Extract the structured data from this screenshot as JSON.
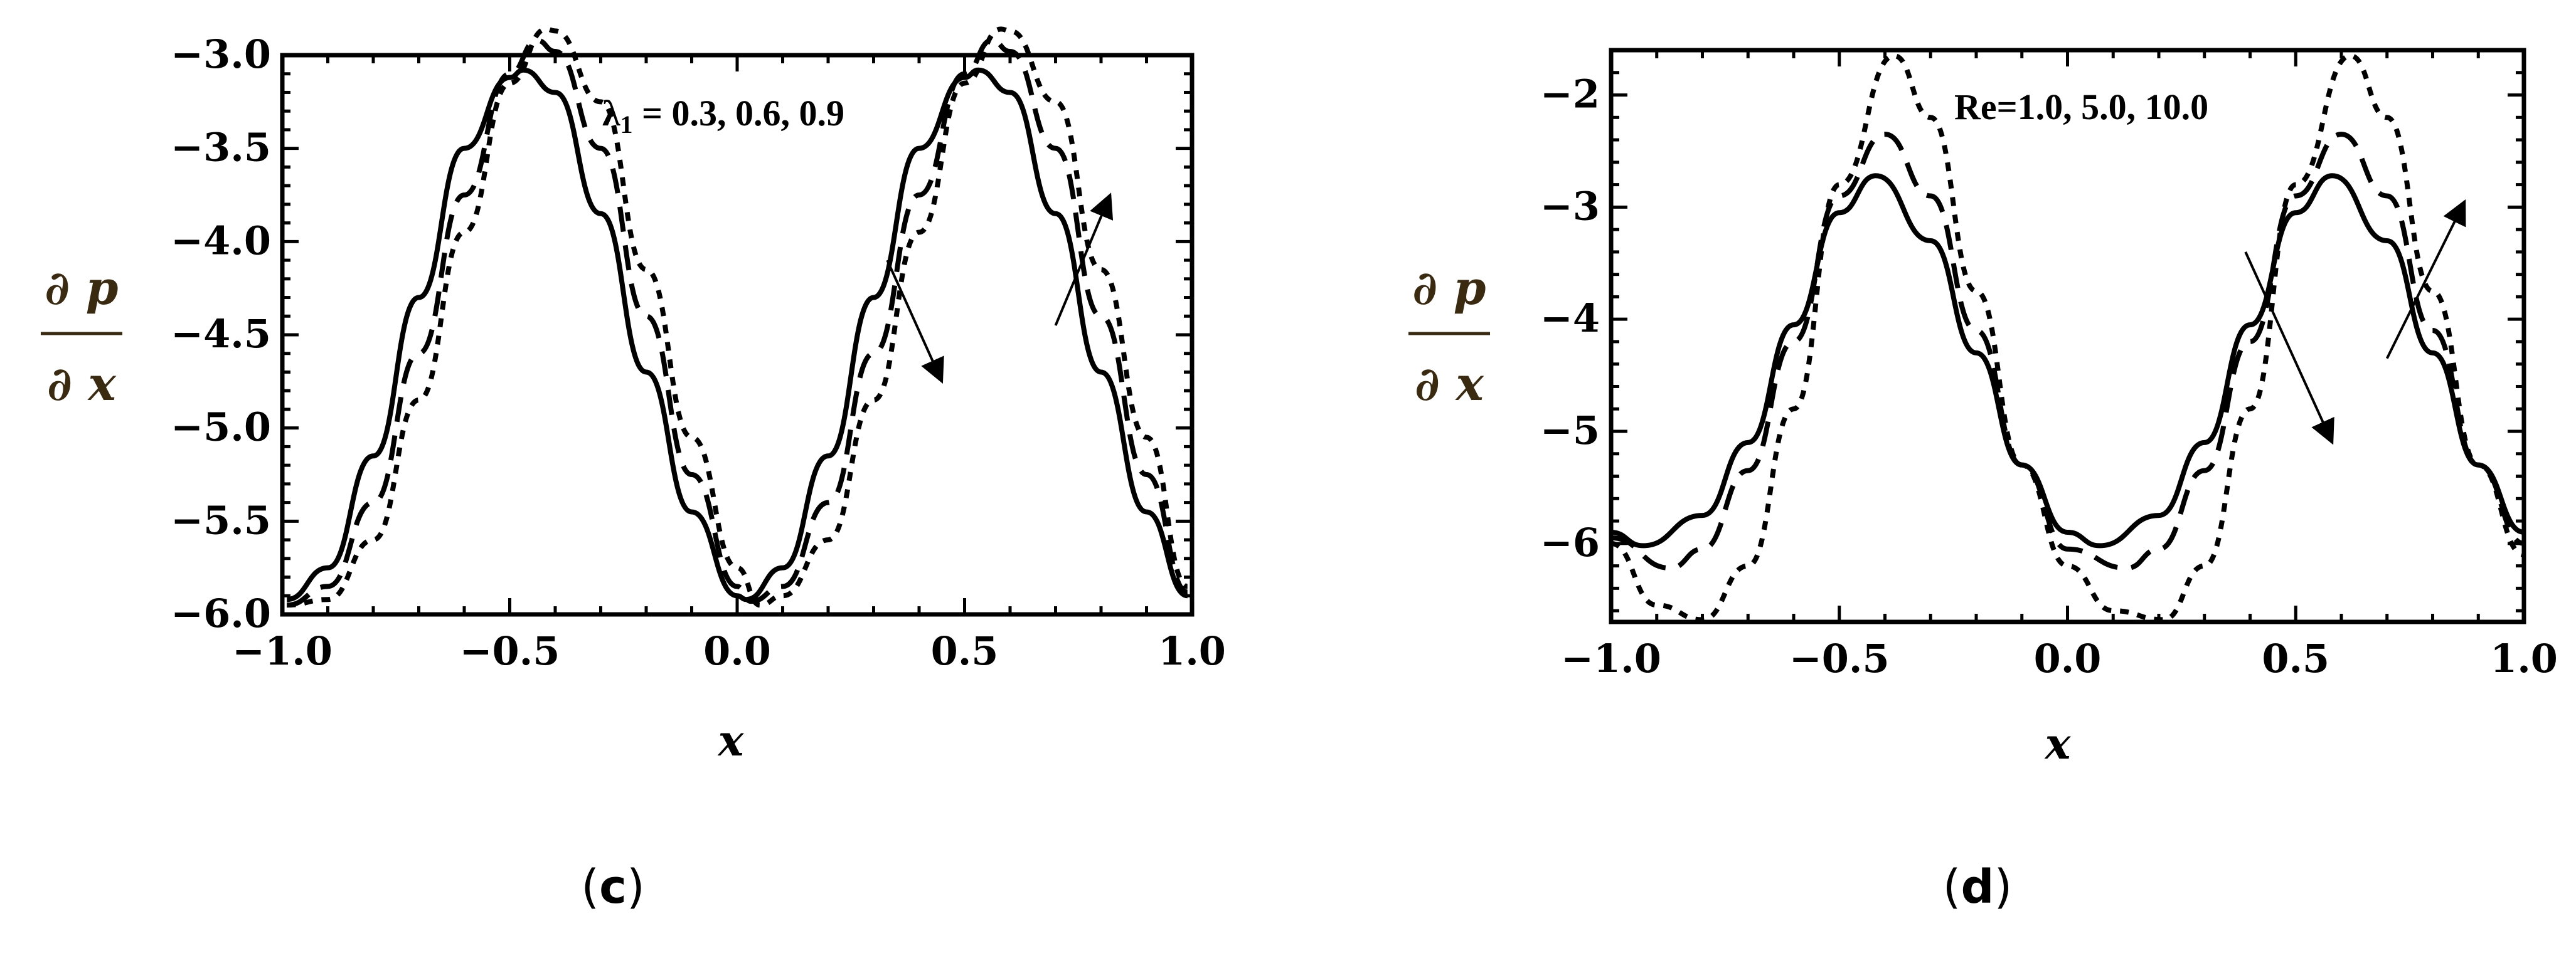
{
  "chart_data": [
    {
      "panel": "c",
      "type": "line",
      "xlabel": "x",
      "ylabel_numerator": "∂ p",
      "ylabel_denominator": "∂ x",
      "xlim": [
        -1.0,
        1.0
      ],
      "ylim": [
        -6.0,
        -3.0
      ],
      "x_ticks": [
        -1.0,
        -0.5,
        0.0,
        0.5,
        1.0
      ],
      "x_tick_labels": [
        "−1.0",
        "−0.5",
        "0.0",
        "0.5",
        "1.0"
      ],
      "y_ticks": [
        -3.0,
        -3.5,
        -4.0,
        -4.5,
        -5.0,
        -5.5,
        -6.0
      ],
      "y_tick_labels": [
        "−3.0",
        "−3.5",
        "−4.0",
        "−4.5",
        "−5.0",
        "−5.5",
        "−6.0"
      ],
      "annotation_main": "λ",
      "annotation_sub": "1",
      "annotation_rest": " = 0.3, 0.6, 0.9",
      "series": [
        {
          "style": "solid",
          "x": [
            -0.99,
            -0.9,
            -0.8,
            -0.7,
            -0.6,
            -0.5,
            -0.47,
            -0.4,
            -0.3,
            -0.2,
            -0.1,
            0.0,
            0.02,
            0.1,
            0.2,
            0.3,
            0.4,
            0.5,
            0.53,
            0.6,
            0.7,
            0.8,
            0.9,
            0.99
          ],
          "y": [
            -5.92,
            -5.75,
            -5.15,
            -4.3,
            -3.5,
            -3.12,
            -3.08,
            -3.2,
            -3.85,
            -4.7,
            -5.45,
            -5.9,
            -5.92,
            -5.75,
            -5.15,
            -4.3,
            -3.5,
            -3.12,
            -3.08,
            -3.2,
            -3.85,
            -4.7,
            -5.45,
            -5.9
          ]
        },
        {
          "style": "dashed",
          "x": [
            -0.99,
            -0.9,
            -0.8,
            -0.7,
            -0.6,
            -0.5,
            -0.44,
            -0.4,
            -0.3,
            -0.2,
            -0.1,
            0.0,
            0.03,
            0.1,
            0.2,
            0.3,
            0.4,
            0.5,
            0.56,
            0.6,
            0.7,
            0.8,
            0.9,
            0.99
          ],
          "y": [
            -5.95,
            -5.85,
            -5.4,
            -4.6,
            -3.75,
            -3.1,
            -2.92,
            -2.98,
            -3.5,
            -4.4,
            -5.25,
            -5.85,
            -5.93,
            -5.85,
            -5.4,
            -4.6,
            -3.75,
            -3.1,
            -2.92,
            -2.98,
            -3.5,
            -4.4,
            -5.25,
            -5.88
          ]
        },
        {
          "style": "dotted",
          "x": [
            -0.99,
            -0.9,
            -0.8,
            -0.7,
            -0.6,
            -0.5,
            -0.42,
            -0.4,
            -0.3,
            -0.2,
            -0.1,
            0.0,
            0.05,
            0.1,
            0.2,
            0.3,
            0.4,
            0.5,
            0.58,
            0.6,
            0.7,
            0.8,
            0.9,
            0.99
          ],
          "y": [
            -5.95,
            -5.92,
            -5.6,
            -4.85,
            -3.95,
            -3.15,
            -2.86,
            -2.87,
            -3.25,
            -4.15,
            -5.05,
            -5.75,
            -5.95,
            -5.9,
            -5.6,
            -4.85,
            -3.95,
            -3.15,
            -2.86,
            -2.87,
            -3.25,
            -4.15,
            -5.05,
            -5.85
          ]
        }
      ],
      "arrows": [
        {
          "x1": 0.33,
          "y1": -4.1,
          "x2": 0.45,
          "y2": -4.75
        },
        {
          "x1": 0.7,
          "y1": -4.45,
          "x2": 0.82,
          "y2": -3.75
        }
      ]
    },
    {
      "panel": "d",
      "type": "line",
      "xlabel": "x",
      "ylabel_numerator": "∂ p",
      "ylabel_denominator": "∂ x",
      "xlim": [
        -1.0,
        1.0
      ],
      "ylim": [
        -6.7,
        -1.6
      ],
      "x_ticks": [
        -1.0,
        -0.5,
        0.0,
        0.5,
        1.0
      ],
      "x_tick_labels": [
        "−1.0",
        "−0.5",
        "0.0",
        "0.5",
        "1.0"
      ],
      "y_ticks": [
        -2,
        -3,
        -4,
        -5,
        -6
      ],
      "y_tick_labels": [
        "−2",
        "−3",
        "−4",
        "−5",
        "−6"
      ],
      "annotation_main": "Re=1.0, 5.0, 10.0",
      "annotation_sub": "",
      "annotation_rest": "",
      "series": [
        {
          "style": "solid",
          "x": [
            -1.0,
            -0.93,
            -0.8,
            -0.7,
            -0.6,
            -0.5,
            -0.42,
            -0.3,
            -0.2,
            -0.1,
            0.0,
            0.07,
            0.2,
            0.3,
            0.4,
            0.5,
            0.58,
            0.7,
            0.8,
            0.9,
            1.0
          ],
          "y": [
            -5.9,
            -6.02,
            -5.75,
            -5.1,
            -4.05,
            -3.05,
            -2.72,
            -3.3,
            -4.3,
            -5.3,
            -5.9,
            -6.02,
            -5.75,
            -5.1,
            -4.05,
            -3.05,
            -2.72,
            -3.3,
            -4.3,
            -5.3,
            -5.9
          ]
        },
        {
          "style": "dashed",
          "x": [
            -1.0,
            -0.87,
            -0.8,
            -0.7,
            -0.6,
            -0.5,
            -0.4,
            -0.3,
            -0.2,
            -0.1,
            0.0,
            0.13,
            0.2,
            0.3,
            0.4,
            0.5,
            0.6,
            0.7,
            0.8,
            0.9,
            1.0
          ],
          "y": [
            -5.95,
            -6.22,
            -6.05,
            -5.35,
            -4.2,
            -2.9,
            -2.35,
            -2.9,
            -4.1,
            -5.3,
            -6.05,
            -6.22,
            -6.05,
            -5.35,
            -4.2,
            -2.9,
            -2.35,
            -2.9,
            -4.1,
            -5.3,
            -6.0
          ]
        },
        {
          "style": "dotted",
          "x": [
            -1.0,
            -0.9,
            -0.8,
            -0.7,
            -0.6,
            -0.5,
            -0.38,
            -0.3,
            -0.2,
            -0.1,
            0.0,
            0.1,
            0.21,
            0.3,
            0.4,
            0.5,
            0.62,
            0.7,
            0.8,
            0.9,
            1.0
          ],
          "y": [
            -6.0,
            -6.55,
            -6.68,
            -6.2,
            -4.8,
            -2.8,
            -1.65,
            -2.2,
            -3.75,
            -5.3,
            -6.2,
            -6.6,
            -6.68,
            -6.2,
            -4.8,
            -2.8,
            -1.65,
            -2.2,
            -3.75,
            -5.3,
            -6.1
          ]
        }
      ],
      "arrows": [
        {
          "x1": 0.39,
          "y1": -3.4,
          "x2": 0.58,
          "y2": -5.1
        },
        {
          "x1": 0.7,
          "y1": -4.35,
          "x2": 0.87,
          "y2": -2.95
        }
      ]
    }
  ],
  "panel_labels": [
    "c",
    "d"
  ]
}
